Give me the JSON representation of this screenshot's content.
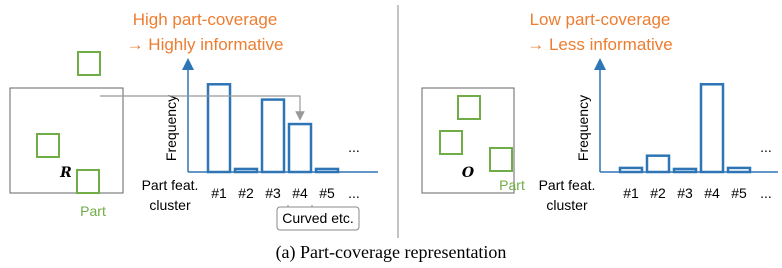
{
  "chart_data": [
    {
      "type": "bar",
      "title": "High part-coverage",
      "subtitle": "→ Highly informative",
      "y_label": "Frequency",
      "x_label_lines": [
        "Part feat.",
        "cluster"
      ],
      "categories": [
        "#1",
        "#2",
        "#3",
        "#4",
        "#5",
        "..."
      ],
      "values": [
        86,
        3,
        71,
        47,
        3,
        null
      ],
      "ylim": [
        0,
        100
      ],
      "color": "#2e75b6",
      "ellipsis": "...",
      "glyph": "R",
      "part_label": "Part",
      "note": "Curved etc."
    },
    {
      "type": "bar",
      "title": "Low part-coverage",
      "subtitle": "→ Less informative",
      "y_label": "Frequency",
      "x_label_lines": [
        "Part feat.",
        "cluster"
      ],
      "categories": [
        "#1",
        "#2",
        "#3",
        "#4",
        "#5",
        "..."
      ],
      "values": [
        4,
        16,
        3,
        86,
        4,
        null
      ],
      "ylim": [
        0,
        100
      ],
      "color": "#2e75b6",
      "ellipsis": "...",
      "glyph": "O",
      "part_label": "Part"
    }
  ],
  "caption": "(a) Part-coverage representation"
}
